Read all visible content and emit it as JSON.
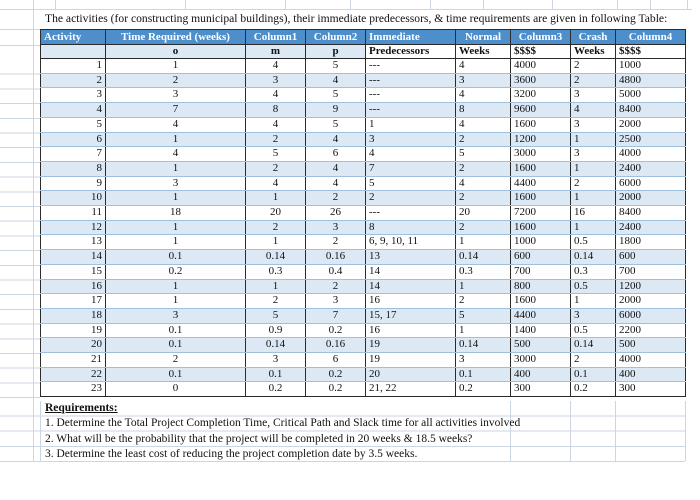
{
  "title": "The activities (for constructing municipal buildings), their immediate predecessors, & time requirements are given in following Table:",
  "colors": {
    "header_bg": "#4e8fcb",
    "header_text": "#ffffff",
    "band_bg": "#dce9f5",
    "cell_border_dark": "#2b2b2b",
    "row_separator": "#9fc0df",
    "faint_grid": "#ccd6e2",
    "text": "#111111"
  },
  "table": {
    "header_row1": [
      "Activity",
      "Time Required (weeks)",
      "Column1",
      "Column2",
      "Immediate",
      "Normal",
      "Column3",
      "Crash",
      "Column4"
    ],
    "header_row2": [
      "",
      "o",
      "m",
      "p",
      "Predecessors",
      "Weeks",
      "$$$$",
      "Weeks",
      "$$$$"
    ],
    "activities": [
      {
        "activity": "1",
        "o": "1",
        "m": "4",
        "p": "5",
        "pred": "---",
        "normal_weeks": "4",
        "normal_cost": "4000",
        "crash_weeks": "2",
        "crash_cost": "1000"
      },
      {
        "activity": "2",
        "o": "2",
        "m": "3",
        "p": "4",
        "pred": "---",
        "normal_weeks": "3",
        "normal_cost": "3600",
        "crash_weeks": "2",
        "crash_cost": "4800"
      },
      {
        "activity": "3",
        "o": "3",
        "m": "4",
        "p": "5",
        "pred": "---",
        "normal_weeks": "4",
        "normal_cost": "3200",
        "crash_weeks": "3",
        "crash_cost": "5000"
      },
      {
        "activity": "4",
        "o": "7",
        "m": "8",
        "p": "9",
        "pred": "---",
        "normal_weeks": "8",
        "normal_cost": "9600",
        "crash_weeks": "4",
        "crash_cost": "8400"
      },
      {
        "activity": "5",
        "o": "4",
        "m": "4",
        "p": "5",
        "pred": "1",
        "normal_weeks": "4",
        "normal_cost": "1600",
        "crash_weeks": "3",
        "crash_cost": "2000"
      },
      {
        "activity": "6",
        "o": "1",
        "m": "2",
        "p": "4",
        "pred": "3",
        "normal_weeks": "2",
        "normal_cost": "1200",
        "crash_weeks": "1",
        "crash_cost": "2500"
      },
      {
        "activity": "7",
        "o": "4",
        "m": "5",
        "p": "6",
        "pred": "4",
        "normal_weeks": "5",
        "normal_cost": "3000",
        "crash_weeks": "3",
        "crash_cost": "4000"
      },
      {
        "activity": "8",
        "o": "1",
        "m": "2",
        "p": "4",
        "pred": "7",
        "normal_weeks": "2",
        "normal_cost": "1600",
        "crash_weeks": "1",
        "crash_cost": "2400"
      },
      {
        "activity": "9",
        "o": "3",
        "m": "4",
        "p": "4",
        "pred": "5",
        "normal_weeks": "4",
        "normal_cost": "4400",
        "crash_weeks": "2",
        "crash_cost": "6000"
      },
      {
        "activity": "10",
        "o": "1",
        "m": "1",
        "p": "2",
        "pred": "2",
        "normal_weeks": "2",
        "normal_cost": "1600",
        "crash_weeks": "1",
        "crash_cost": "2000"
      },
      {
        "activity": "11",
        "o": "18",
        "m": "20",
        "p": "26",
        "pred": "---",
        "normal_weeks": "20",
        "normal_cost": "7200",
        "crash_weeks": "16",
        "crash_cost": "8400"
      },
      {
        "activity": "12",
        "o": "1",
        "m": "2",
        "p": "3",
        "pred": "8",
        "normal_weeks": "2",
        "normal_cost": "1600",
        "crash_weeks": "1",
        "crash_cost": "2400"
      },
      {
        "activity": "13",
        "o": "1",
        "m": "1",
        "p": "2",
        "pred": "6, 9, 10, 11",
        "normal_weeks": "1",
        "normal_cost": "1000",
        "crash_weeks": "0.5",
        "crash_cost": "1800"
      },
      {
        "activity": "14",
        "o": "0.1",
        "m": "0.14",
        "p": "0.16",
        "pred": "13",
        "normal_weeks": "0.14",
        "normal_cost": "600",
        "crash_weeks": "0.14",
        "crash_cost": "600"
      },
      {
        "activity": "15",
        "o": "0.2",
        "m": "0.3",
        "p": "0.4",
        "pred": "14",
        "normal_weeks": "0.3",
        "normal_cost": "700",
        "crash_weeks": "0.3",
        "crash_cost": "700"
      },
      {
        "activity": "16",
        "o": "1",
        "m": "1",
        "p": "2",
        "pred": "14",
        "normal_weeks": "1",
        "normal_cost": "800",
        "crash_weeks": "0.5",
        "crash_cost": "1200"
      },
      {
        "activity": "17",
        "o": "1",
        "m": "2",
        "p": "3",
        "pred": "16",
        "normal_weeks": "2",
        "normal_cost": "1600",
        "crash_weeks": "1",
        "crash_cost": "2000"
      },
      {
        "activity": "18",
        "o": "3",
        "m": "5",
        "p": "7",
        "pred": "15, 17",
        "normal_weeks": "5",
        "normal_cost": "4400",
        "crash_weeks": "3",
        "crash_cost": "6000"
      },
      {
        "activity": "19",
        "o": "0.1",
        "m": "0.9",
        "p": "0.2",
        "pred": "16",
        "normal_weeks": "1",
        "normal_cost": "1400",
        "crash_weeks": "0.5",
        "crash_cost": "2200"
      },
      {
        "activity": "20",
        "o": "0.1",
        "m": "0.14",
        "p": "0.16",
        "pred": "19",
        "normal_weeks": "0.14",
        "normal_cost": "500",
        "crash_weeks": "0.14",
        "crash_cost": "500"
      },
      {
        "activity": "21",
        "o": "2",
        "m": "3",
        "p": "6",
        "pred": "19",
        "normal_weeks": "3",
        "normal_cost": "3000",
        "crash_weeks": "2",
        "crash_cost": "4000"
      },
      {
        "activity": "22",
        "o": "0.1",
        "m": "0.1",
        "p": "0.2",
        "pred": "20",
        "normal_weeks": "0.1",
        "normal_cost": "400",
        "crash_weeks": "0.1",
        "crash_cost": "400"
      },
      {
        "activity": "23",
        "o": "0",
        "m": "0.2",
        "p": "0.2",
        "pred": "21, 22",
        "normal_weeks": "0.2",
        "normal_cost": "300",
        "crash_weeks": "0.2",
        "crash_cost": "300"
      }
    ]
  },
  "requirements": {
    "heading": "Requirements:",
    "items": [
      "1. Determine the Total Project Completion Time, Critical Path and Slack time for all activities involved",
      "2. What will be the probability that the project will be completed in 20 weeks & 18.5 weeks?",
      "3. Determine the least cost of reducing the project completion date by 3.5 weeks."
    ]
  }
}
